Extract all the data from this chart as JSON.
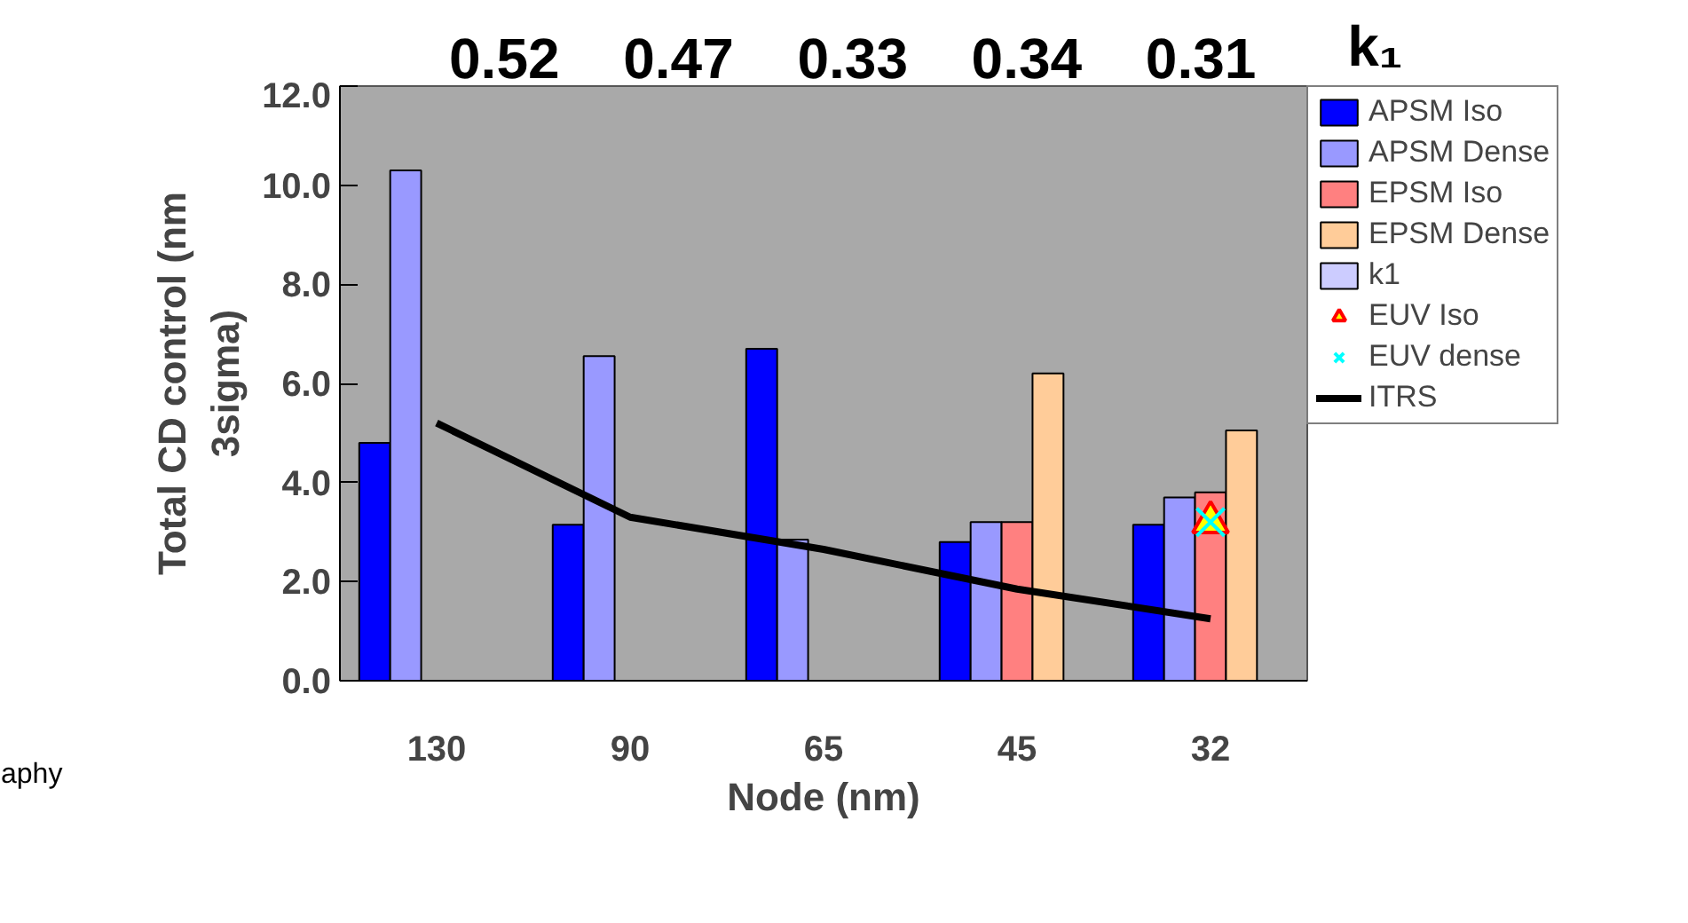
{
  "chart_data": {
    "type": "bar",
    "xlabel": "Node (nm)",
    "ylabel": "Total CD control (nm 3sigma)",
    "categories": [
      "130",
      "90",
      "65",
      "45",
      "32"
    ],
    "series": [
      {
        "name": "APSM Iso",
        "color": "#0000ff",
        "values": [
          4.8,
          3.15,
          6.7,
          2.8,
          3.15
        ]
      },
      {
        "name": "APSM Dense",
        "color": "#9999ff",
        "values": [
          10.3,
          6.55,
          2.85,
          3.2,
          3.7
        ]
      },
      {
        "name": "EPSM Iso",
        "color": "#ff8080",
        "values": [
          null,
          null,
          null,
          3.2,
          3.8
        ]
      },
      {
        "name": "EPSM Dense",
        "color": "#ffcc99",
        "values": [
          null,
          null,
          null,
          6.2,
          5.05
        ]
      },
      {
        "name": "k1",
        "color": "#ccccff",
        "values": [
          null,
          null,
          null,
          null,
          null
        ]
      },
      {
        "name": "EUV Iso",
        "type": "scatter",
        "marker": "triangle",
        "color": "#ffff00",
        "x": [
          "32"
        ],
        "values": [
          3.2
        ]
      },
      {
        "name": "EUV dense",
        "type": "scatter",
        "marker": "cross",
        "color": "#00ffff",
        "x": [
          "32"
        ],
        "values": [
          3.2
        ]
      },
      {
        "name": "ITRS",
        "type": "line",
        "color": "#000000",
        "values": [
          5.2,
          3.3,
          2.65,
          1.85,
          1.25
        ]
      }
    ],
    "ylim": [
      0,
      12
    ],
    "yticks": [
      {
        "value": 0,
        "label": "0.0"
      },
      {
        "value": 2,
        "label": "2.0"
      },
      {
        "value": 4,
        "label": "4.0"
      },
      {
        "value": 6,
        "label": "6.0"
      },
      {
        "value": 8,
        "label": "8.0"
      },
      {
        "value": 10,
        "label": "10.0"
      },
      {
        "value": 12,
        "label": "12.0"
      }
    ],
    "grid": false,
    "legend": "right",
    "annotations": [
      "0.52",
      "0.47",
      "0.33",
      "0.34",
      "0.31",
      "k₁",
      "aphy"
    ]
  }
}
